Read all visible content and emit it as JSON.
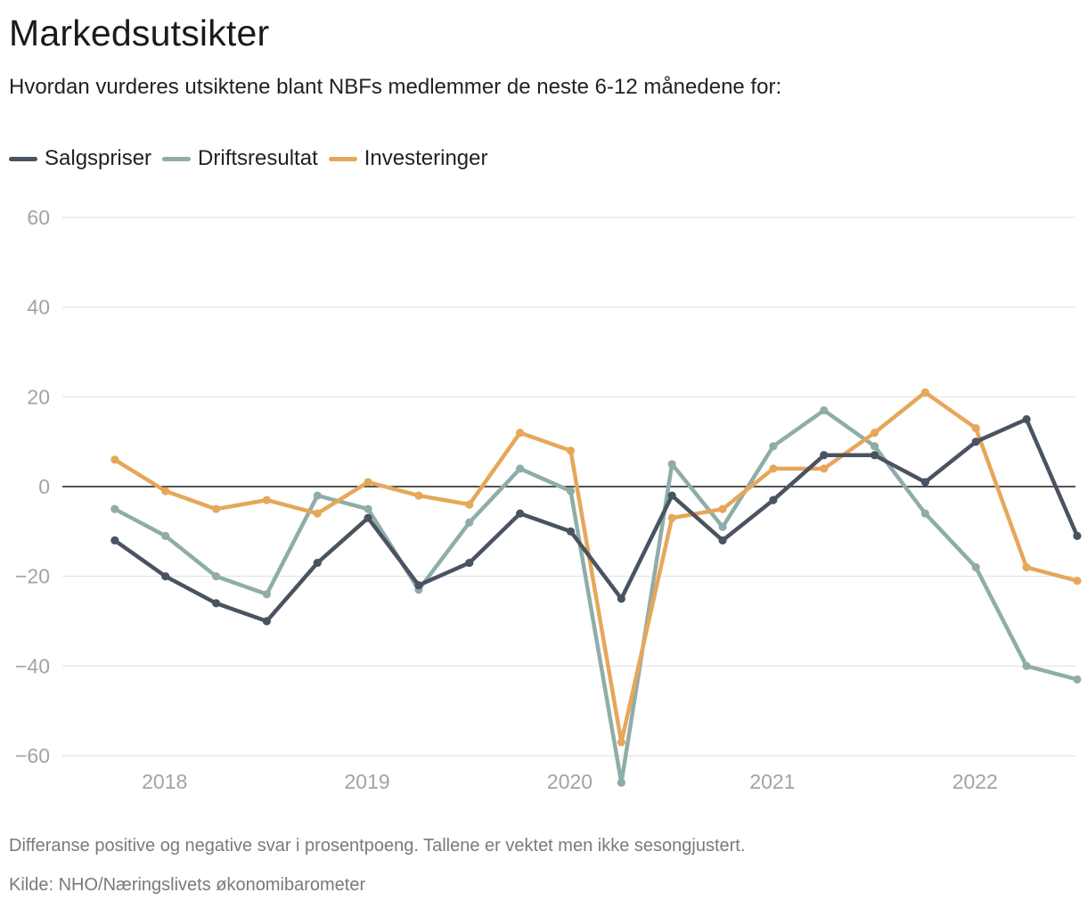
{
  "chart_data": {
    "type": "line",
    "title": "Markedsutsikter",
    "subtitle": "Hvordan vurderes utsiktene blant NBFs medlemmer de neste 6-12 månedene for:",
    "ylim": [
      -60,
      60
    ],
    "yticks": [
      60,
      40,
      20,
      0,
      -20,
      -40,
      -60
    ],
    "ytick_labels": [
      "60",
      "40",
      "20",
      "0",
      "−20",
      "−40",
      "−60"
    ],
    "xlim": [
      2017.5,
      2022.5
    ],
    "xticks": [
      2018,
      2019,
      2020,
      2021,
      2022
    ],
    "xtick_labels": [
      "2018",
      "2019",
      "2020",
      "2021",
      "2022"
    ],
    "x": [
      2017.75,
      2018.0,
      2018.25,
      2018.5,
      2018.75,
      2019.0,
      2019.25,
      2019.5,
      2019.75,
      2020.0,
      2020.25,
      2020.5,
      2020.75,
      2021.0,
      2021.25,
      2021.5,
      2021.75,
      2022.0,
      2022.25,
      2022.5
    ],
    "series": [
      {
        "name": "Salgspriser",
        "color": "#4a5361",
        "values": [
          -12,
          -20,
          -26,
          -30,
          -17,
          -7,
          -22,
          -17,
          -6,
          -10,
          -25,
          -2,
          -12,
          -3,
          7,
          7,
          1,
          10,
          15,
          -11
        ]
      },
      {
        "name": "Driftsresultat",
        "color": "#8fada8",
        "values": [
          -5,
          -11,
          -20,
          -24,
          -2,
          -5,
          -23,
          -8,
          4,
          -1,
          -66,
          5,
          -9,
          9,
          17,
          9,
          -6,
          -18,
          -40,
          -43
        ]
      },
      {
        "name": "Investeringer",
        "color": "#e6a75a",
        "values": [
          6,
          -1,
          -5,
          -3,
          -6,
          1,
          -2,
          -4,
          12,
          8,
          -57,
          -7,
          -5,
          4,
          4,
          12,
          21,
          13,
          -18,
          -21
        ]
      }
    ]
  },
  "notes": {
    "line1": "Differanse positive og negative svar i prosentpoeng. Tallene er vektet men ikke sesongjustert.",
    "line2": "Kilde: NHO/Næringslivets økonomibarometer"
  }
}
